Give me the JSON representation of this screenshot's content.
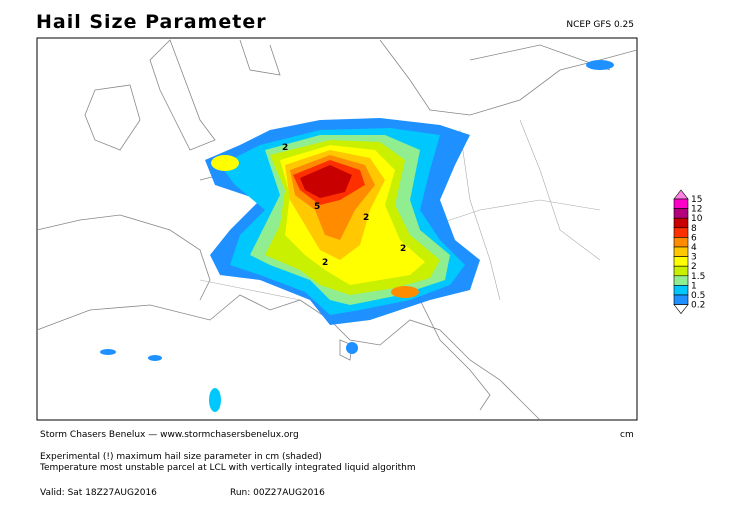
{
  "header": {
    "title": "Hail Size Parameter",
    "source": "NCEP GFS 0.25"
  },
  "map": {
    "contour_labels": [
      "2",
      "5",
      "2",
      "2",
      "2"
    ]
  },
  "legend": {
    "unit": "cm",
    "labels": [
      "15",
      "12",
      "10",
      "8",
      "6",
      "4",
      "3",
      "2",
      "1.5",
      "1",
      "0.5",
      "0.2"
    ],
    "colors": [
      "#ff80e0",
      "#ff00c8",
      "#b4007c",
      "#c80000",
      "#ff3000",
      "#ff8c00",
      "#ffc800",
      "#ffff00",
      "#c8f000",
      "#90ee90",
      "#00c8ff",
      "#1e90ff",
      "#ffffff"
    ]
  },
  "footer": {
    "credit": "Storm Chasers Benelux — www.stormchasersbenelux.org",
    "description": "Experimental (!) maximum hail size parameter in cm (shaded)",
    "method": "Temperature most unstable parcel at LCL with vertically integrated liquid algorithm",
    "valid": "Valid: Sat 18Z27AUG2016",
    "run": "Run: 00Z27AUG2016"
  }
}
